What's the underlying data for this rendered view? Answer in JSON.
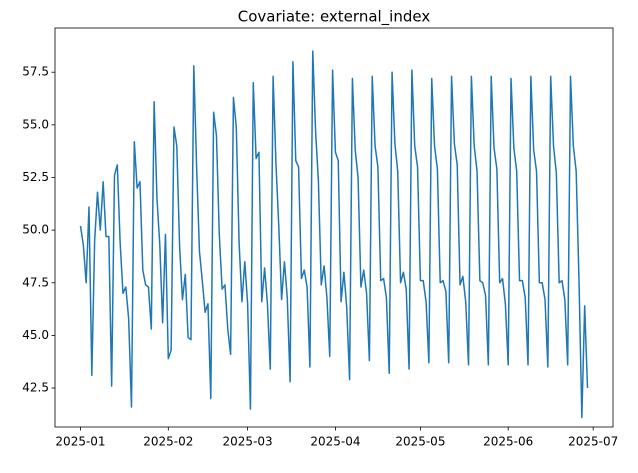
{
  "chart_data": {
    "type": "line",
    "title": "Covariate: external_index",
    "color": "#1f77b4",
    "x": [
      "2025-01-01",
      "2025-01-02",
      "2025-01-03",
      "2025-01-04",
      "2025-01-05",
      "2025-01-06",
      "2025-01-07",
      "2025-01-08",
      "2025-01-09",
      "2025-01-10",
      "2025-01-11",
      "2025-01-12",
      "2025-01-13",
      "2025-01-14",
      "2025-01-15",
      "2025-01-16",
      "2025-01-17",
      "2025-01-18",
      "2025-01-19",
      "2025-01-20",
      "2025-01-21",
      "2025-01-22",
      "2025-01-23",
      "2025-01-24",
      "2025-01-25",
      "2025-01-26",
      "2025-01-27",
      "2025-01-28",
      "2025-01-29",
      "2025-01-30",
      "2025-01-31",
      "2025-02-01",
      "2025-02-02",
      "2025-02-03",
      "2025-02-04",
      "2025-02-05",
      "2025-02-06",
      "2025-02-07",
      "2025-02-08",
      "2025-02-09",
      "2025-02-10",
      "2025-02-11",
      "2025-02-12",
      "2025-02-13",
      "2025-02-14",
      "2025-02-15",
      "2025-02-16",
      "2025-02-17",
      "2025-02-18",
      "2025-02-19",
      "2025-02-20",
      "2025-02-21",
      "2025-02-22",
      "2025-02-23",
      "2025-02-24",
      "2025-02-25",
      "2025-02-26",
      "2025-02-27",
      "2025-02-28",
      "2025-03-01",
      "2025-03-02",
      "2025-03-03",
      "2025-03-04",
      "2025-03-05",
      "2025-03-06",
      "2025-03-07",
      "2025-03-08",
      "2025-03-09",
      "2025-03-10",
      "2025-03-11",
      "2025-03-12",
      "2025-03-13",
      "2025-03-14",
      "2025-03-15",
      "2025-03-16",
      "2025-03-17",
      "2025-03-18",
      "2025-03-19",
      "2025-03-20",
      "2025-03-21",
      "2025-03-22",
      "2025-03-23",
      "2025-03-24",
      "2025-03-25",
      "2025-03-26",
      "2025-03-27",
      "2025-03-28",
      "2025-03-29",
      "2025-03-30",
      "2025-03-31",
      "2025-04-01",
      "2025-04-02",
      "2025-04-03",
      "2025-04-04",
      "2025-04-05",
      "2025-04-06",
      "2025-04-07",
      "2025-04-08",
      "2025-04-09",
      "2025-04-10",
      "2025-04-11",
      "2025-04-12",
      "2025-04-13",
      "2025-04-14",
      "2025-04-15",
      "2025-04-16",
      "2025-04-17",
      "2025-04-18",
      "2025-04-19",
      "2025-04-20",
      "2025-04-21",
      "2025-04-22",
      "2025-04-23",
      "2025-04-24",
      "2025-04-25",
      "2025-04-26",
      "2025-04-27",
      "2025-04-28",
      "2025-04-29",
      "2025-04-30",
      "2025-05-01",
      "2025-05-02",
      "2025-05-03",
      "2025-05-04",
      "2025-05-05",
      "2025-05-06",
      "2025-05-07",
      "2025-05-08",
      "2025-05-09",
      "2025-05-10",
      "2025-05-11",
      "2025-05-12",
      "2025-05-13",
      "2025-05-14",
      "2025-05-15",
      "2025-05-16",
      "2025-05-17",
      "2025-05-18",
      "2025-05-19",
      "2025-05-20",
      "2025-05-21",
      "2025-05-22",
      "2025-05-23",
      "2025-05-24",
      "2025-05-25",
      "2025-05-26",
      "2025-05-27",
      "2025-05-28",
      "2025-05-29",
      "2025-05-30",
      "2025-05-31",
      "2025-06-01",
      "2025-06-02",
      "2025-06-03",
      "2025-06-04",
      "2025-06-05",
      "2025-06-06",
      "2025-06-07",
      "2025-06-08",
      "2025-06-09",
      "2025-06-10",
      "2025-06-11",
      "2025-06-12",
      "2025-06-13",
      "2025-06-14",
      "2025-06-15",
      "2025-06-16",
      "2025-06-17",
      "2025-06-18",
      "2025-06-19",
      "2025-06-20",
      "2025-06-21",
      "2025-06-22",
      "2025-06-23",
      "2025-06-24",
      "2025-06-25",
      "2025-06-26",
      "2025-06-27",
      "2025-06-28",
      "2025-06-29"
    ],
    "values": [
      50.2,
      49.3,
      47.5,
      51.1,
      43.1,
      49.5,
      51.8,
      50.0,
      52.3,
      49.7,
      49.7,
      42.6,
      52.6,
      53.1,
      49.4,
      47.0,
      47.3,
      45.8,
      41.6,
      54.2,
      52.0,
      52.3,
      48.1,
      47.4,
      47.3,
      45.3,
      56.1,
      51.5,
      49.3,
      45.6,
      49.8,
      43.9,
      44.3,
      54.9,
      54.0,
      49.2,
      46.7,
      47.9,
      44.9,
      44.8,
      57.8,
      53.0,
      49.0,
      47.6,
      46.1,
      46.5,
      42.0,
      55.6,
      54.5,
      49.8,
      47.2,
      47.4,
      45.3,
      44.1,
      56.3,
      54.9,
      49.4,
      46.6,
      48.5,
      46.5,
      41.5,
      57.0,
      53.4,
      53.7,
      46.6,
      48.2,
      46.5,
      43.4,
      57.3,
      53.2,
      50.2,
      46.7,
      48.5,
      46.8,
      42.8,
      58.0,
      53.3,
      53.0,
      47.7,
      48.1,
      47.3,
      43.5,
      58.5,
      54.7,
      52.3,
      47.4,
      48.3,
      46.8,
      44.0,
      57.6,
      53.7,
      53.3,
      46.6,
      48.0,
      46.3,
      42.9,
      57.2,
      53.8,
      52.5,
      47.3,
      48.1,
      47.0,
      43.8,
      57.3,
      54.0,
      53.0,
      47.6,
      47.7,
      46.8,
      43.2,
      57.5,
      54.1,
      52.8,
      47.5,
      48.0,
      47.2,
      43.4,
      57.6,
      54.0,
      53.0,
      47.6,
      47.6,
      46.6,
      43.7,
      57.2,
      54.0,
      52.9,
      47.5,
      47.6,
      47.1,
      43.7,
      57.3,
      54.1,
      53.1,
      47.4,
      47.8,
      46.6,
      43.6,
      57.3,
      54.0,
      52.8,
      47.6,
      47.5,
      46.9,
      43.6,
      57.3,
      53.9,
      52.9,
      47.5,
      47.7,
      46.5,
      43.6,
      57.2,
      53.9,
      52.8,
      47.6,
      47.6,
      46.8,
      43.6,
      57.3,
      53.8,
      52.8,
      47.5,
      47.5,
      46.7,
      43.5,
      57.3,
      54.0,
      52.7,
      47.5,
      47.6,
      46.7,
      43.6,
      57.3,
      54.0,
      52.8,
      47.6,
      41.1,
      46.4,
      42.5
    ],
    "xlim": [
      "2024-12-23",
      "2025-07-08"
    ],
    "xticks": [
      {
        "value": "2025-01-01",
        "label": "2025-01"
      },
      {
        "value": "2025-02-01",
        "label": "2025-02"
      },
      {
        "value": "2025-03-01",
        "label": "2025-03"
      },
      {
        "value": "2025-04-01",
        "label": "2025-04"
      },
      {
        "value": "2025-05-01",
        "label": "2025-05"
      },
      {
        "value": "2025-06-01",
        "label": "2025-06"
      },
      {
        "value": "2025-07-01",
        "label": "2025-07"
      }
    ],
    "ylim": [
      40.65,
      59.6
    ],
    "yticks": [
      42.5,
      {
        "value": 45,
        "label": "45.0"
      },
      47.5,
      {
        "value": 50,
        "label": "50.0"
      },
      52.5,
      {
        "value": 55,
        "label": "55.0"
      },
      57.5
    ]
  }
}
